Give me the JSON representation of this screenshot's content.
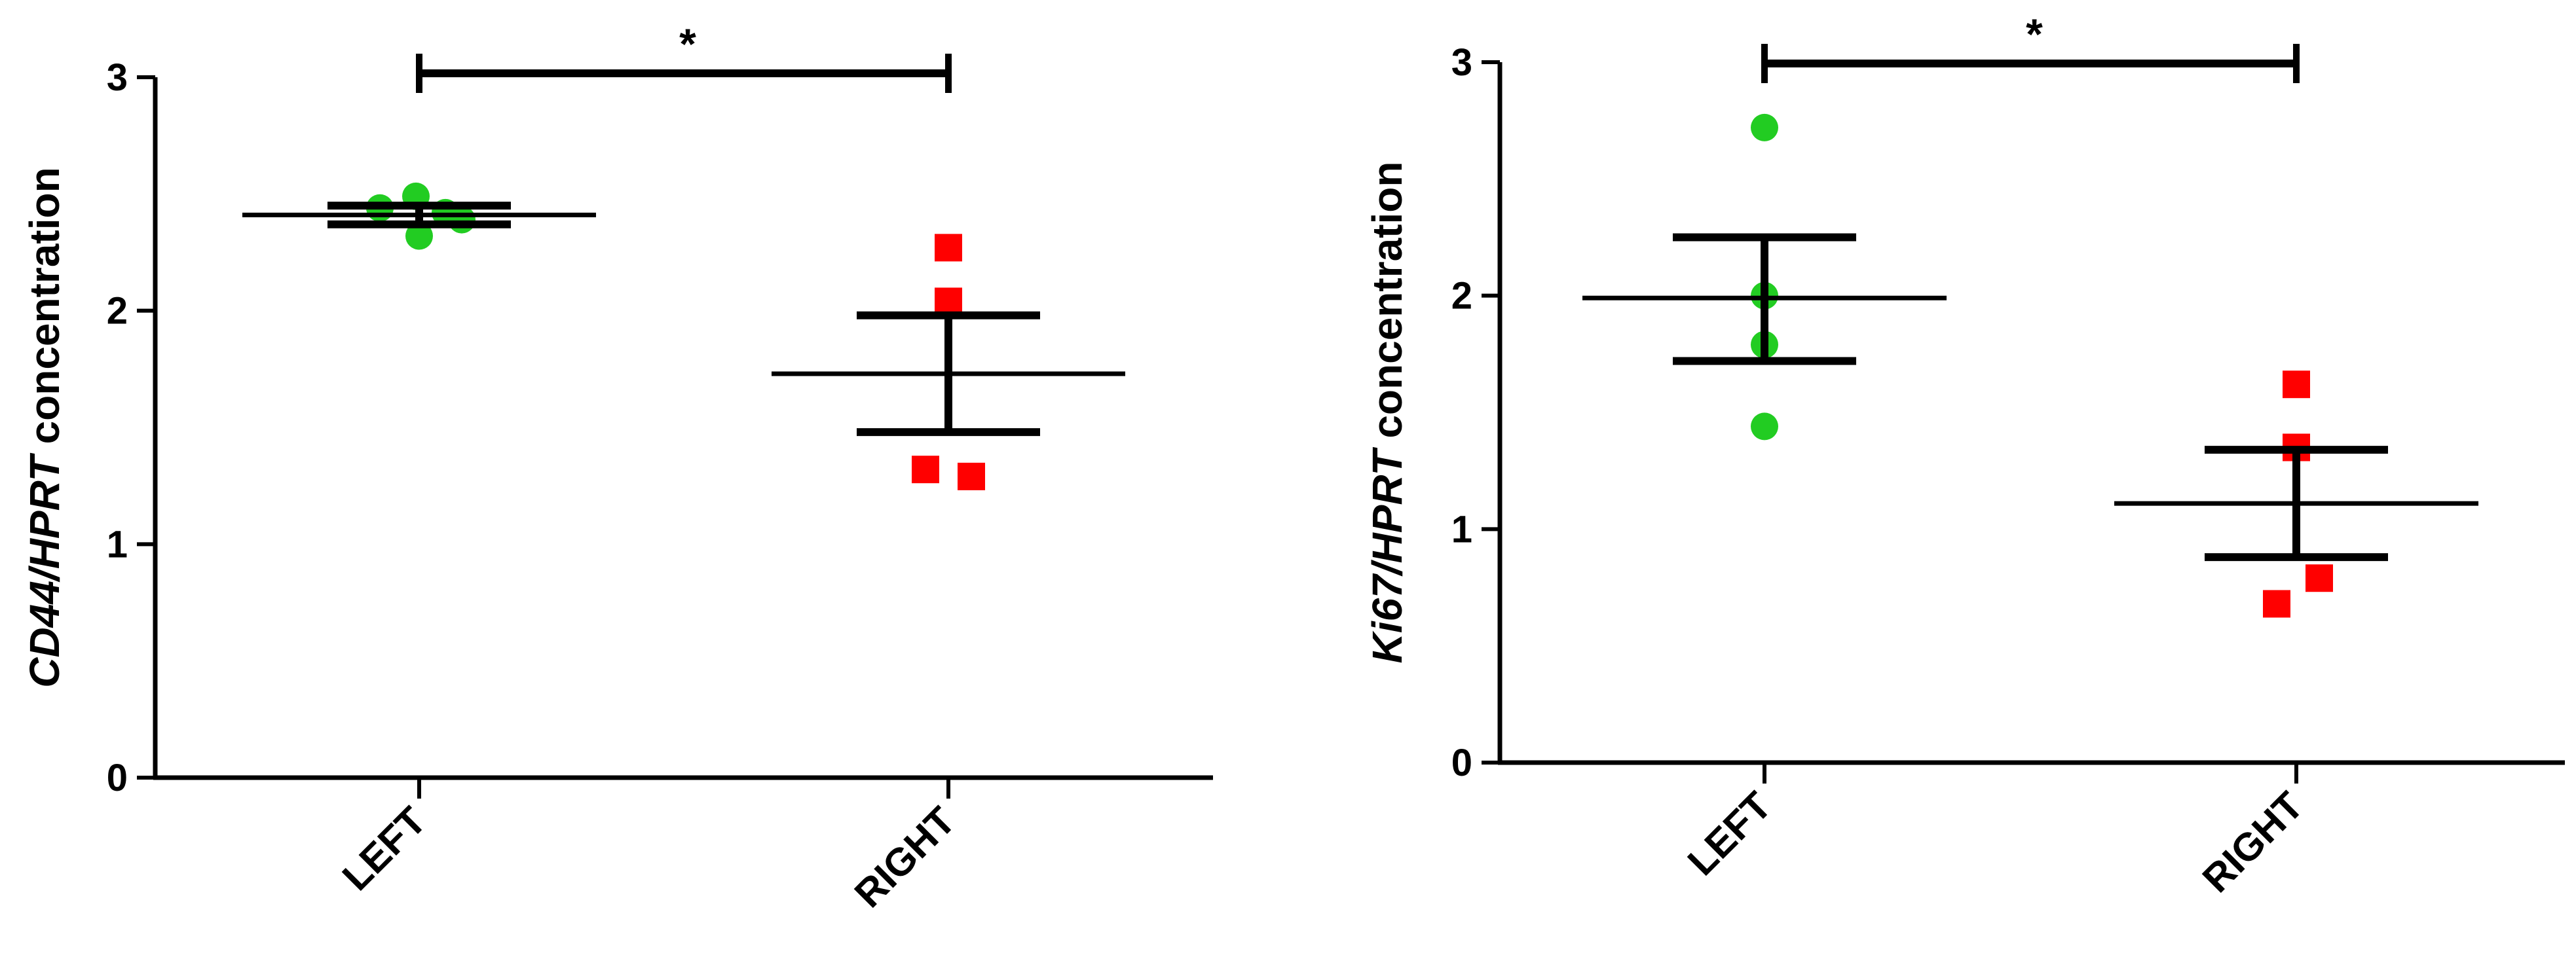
{
  "chart_data": [
    {
      "type": "scatter",
      "ylabel_italic": "CD44/HPRT",
      "ylabel_rest": " concentration",
      "categories": [
        "LEFT",
        "RIGHT"
      ],
      "ylim": [
        0,
        3
      ],
      "yticks": [
        0,
        1,
        2,
        3
      ],
      "grid": false,
      "series": [
        {
          "category": "LEFT",
          "color": "#22cc22",
          "marker": "circle",
          "points": [
            2.44,
            2.49,
            2.42,
            2.39,
            2.32
          ],
          "mean": 2.41,
          "sem_upper": 2.45,
          "sem_lower": 2.37
        },
        {
          "category": "RIGHT",
          "color": "#ff0000",
          "marker": "square",
          "points": [
            2.27,
            2.04,
            1.32,
            1.29
          ],
          "mean": 1.73,
          "sem_upper": 1.98,
          "sem_lower": 1.48
        }
      ],
      "significance": {
        "from": "LEFT",
        "to": "RIGHT",
        "label": "*"
      }
    },
    {
      "type": "scatter",
      "ylabel_italic": "Ki67/HPRT",
      "ylabel_rest": " concentration",
      "categories": [
        "LEFT",
        "RIGHT"
      ],
      "ylim": [
        0,
        3
      ],
      "yticks": [
        0,
        1,
        2,
        3
      ],
      "grid": false,
      "series": [
        {
          "category": "LEFT",
          "color": "#22cc22",
          "marker": "circle",
          "points": [
            2.72,
            2.0,
            1.79,
            1.44
          ],
          "mean": 1.99,
          "sem_upper": 2.25,
          "sem_lower": 1.72
        },
        {
          "category": "RIGHT",
          "color": "#ff0000",
          "marker": "square",
          "points": [
            1.62,
            1.35,
            0.79,
            0.68
          ],
          "mean": 1.11,
          "sem_upper": 1.34,
          "sem_lower": 0.88
        }
      ],
      "significance": {
        "from": "LEFT",
        "to": "RIGHT",
        "label": "*"
      }
    }
  ]
}
